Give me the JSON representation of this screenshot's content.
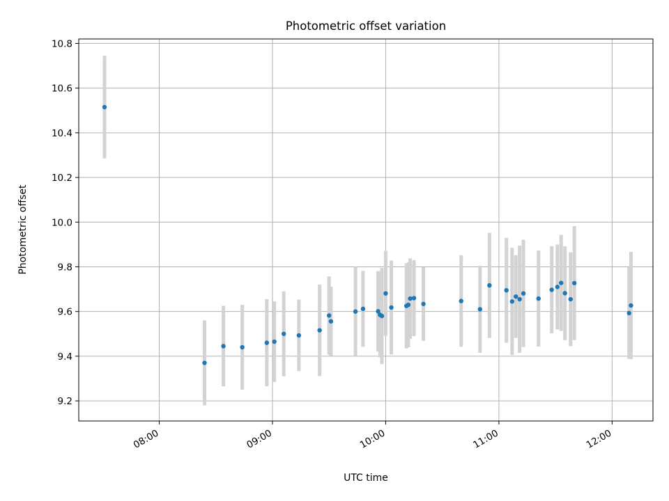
{
  "chart_data": {
    "type": "scatter",
    "title": "Photometric offset variation",
    "xlabel": "UTC time",
    "ylabel": "Photometric offset",
    "x_tick_labels": [
      "08:00",
      "09:00",
      "10:00",
      "11:00",
      "12:00"
    ],
    "x_tick_hours": [
      8,
      9,
      10,
      11,
      12
    ],
    "xlim_hours": [
      7.289,
      12.361
    ],
    "y_tick_labels": [
      "9.2",
      "9.4",
      "9.6",
      "9.8",
      "10.0",
      "10.2",
      "10.4",
      "10.6",
      "10.8"
    ],
    "y_tick_values": [
      9.2,
      9.4,
      9.6,
      9.8,
      10.0,
      10.2,
      10.4,
      10.6,
      10.8
    ],
    "ylim": [
      9.11,
      10.82
    ],
    "grid": true,
    "colors": {
      "point": "#1f77b4",
      "errorbar": "#d3d3d3",
      "grid": "#b0b0b0"
    },
    "points": [
      {
        "x": "07:31",
        "y": 10.515,
        "err": 0.23
      },
      {
        "x": "08:24",
        "y": 9.37,
        "err": 0.19
      },
      {
        "x": "08:34",
        "y": 9.445,
        "err": 0.18
      },
      {
        "x": "08:44",
        "y": 9.44,
        "err": 0.19
      },
      {
        "x": "08:57",
        "y": 9.46,
        "err": 0.195
      },
      {
        "x": "09:01",
        "y": 9.465,
        "err": 0.18
      },
      {
        "x": "09:06",
        "y": 9.5,
        "err": 0.19
      },
      {
        "x": "09:14",
        "y": 9.493,
        "err": 0.16
      },
      {
        "x": "09:25",
        "y": 9.516,
        "err": 0.205
      },
      {
        "x": "09:30",
        "y": 9.582,
        "err": 0.175
      },
      {
        "x": "09:31",
        "y": 9.556,
        "err": 0.155
      },
      {
        "x": "09:44",
        "y": 9.6,
        "err": 0.2
      },
      {
        "x": "09:48",
        "y": 9.612,
        "err": 0.17
      },
      {
        "x": "09:56",
        "y": 9.601,
        "err": 0.18
      },
      {
        "x": "09:57",
        "y": 9.585,
        "err": 0.19
      },
      {
        "x": "09:58",
        "y": 9.58,
        "err": 0.215
      },
      {
        "x": "10:00",
        "y": 9.681,
        "err": 0.19
      },
      {
        "x": "10:03",
        "y": 9.618,
        "err": 0.21
      },
      {
        "x": "10:11",
        "y": 9.625,
        "err": 0.19
      },
      {
        "x": "10:12",
        "y": 9.63,
        "err": 0.19
      },
      {
        "x": "10:13",
        "y": 9.658,
        "err": 0.18
      },
      {
        "x": "10:15",
        "y": 9.66,
        "err": 0.17
      },
      {
        "x": "10:20",
        "y": 9.634,
        "err": 0.165
      },
      {
        "x": "10:40",
        "y": 9.647,
        "err": 0.205
      },
      {
        "x": "10:50",
        "y": 9.61,
        "err": 0.195
      },
      {
        "x": "10:55",
        "y": 9.717,
        "err": 0.235
      },
      {
        "x": "11:04",
        "y": 9.695,
        "err": 0.235
      },
      {
        "x": "11:07",
        "y": 9.645,
        "err": 0.24
      },
      {
        "x": "11:09",
        "y": 9.667,
        "err": 0.185
      },
      {
        "x": "11:11",
        "y": 9.655,
        "err": 0.24
      },
      {
        "x": "11:13",
        "y": 9.681,
        "err": 0.24
      },
      {
        "x": "11:21",
        "y": 9.658,
        "err": 0.215
      },
      {
        "x": "11:28",
        "y": 9.697,
        "err": 0.195
      },
      {
        "x": "11:31",
        "y": 9.71,
        "err": 0.19
      },
      {
        "x": "11:33",
        "y": 9.728,
        "err": 0.215
      },
      {
        "x": "11:35",
        "y": 9.682,
        "err": 0.21
      },
      {
        "x": "11:38",
        "y": 9.655,
        "err": 0.21
      },
      {
        "x": "11:40",
        "y": 9.727,
        "err": 0.255
      },
      {
        "x": "12:09",
        "y": 9.593,
        "err": 0.205
      },
      {
        "x": "12:10",
        "y": 9.627,
        "err": 0.24
      }
    ]
  }
}
